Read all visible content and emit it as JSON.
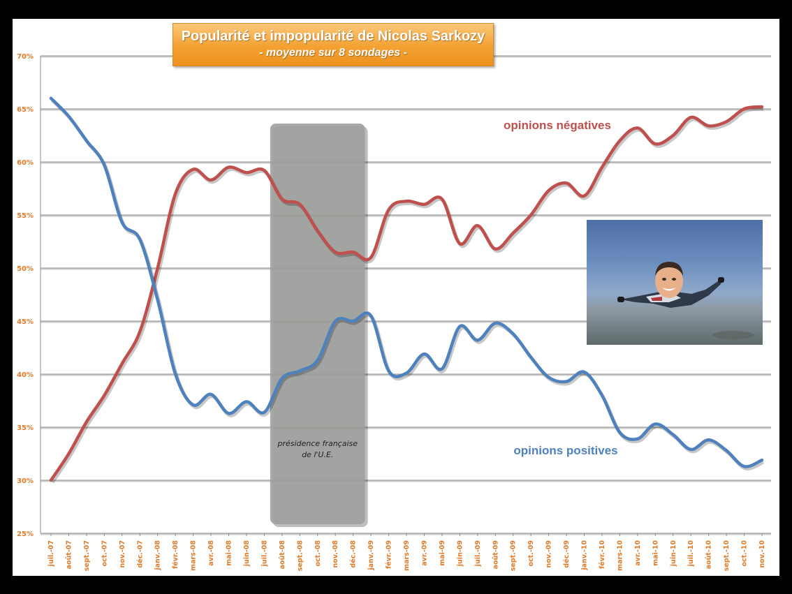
{
  "chart_data": {
    "type": "line",
    "title": "Popularité et impopularité de Nicolas Sarkozy",
    "subtitle": "- moyenne sur 8 sondages -",
    "categories": [
      "juil.-07",
      "août-07",
      "sept.-07",
      "oct.-07",
      "nov.-07",
      "déc.-07",
      "janv.-08",
      "févr.-08",
      "mars-08",
      "avr.-08",
      "mai-08",
      "juin-08",
      "juil.-08",
      "août-08",
      "sept.-08",
      "oct.-08",
      "nov.-08",
      "déc.-08",
      "janv.-09",
      "févr.-09",
      "mars-09",
      "avr.-09",
      "mai-09",
      "juin-09",
      "juil.-09",
      "août-09",
      "sept.-09",
      "oct.-09",
      "nov.-09",
      "déc.-09",
      "janv.-10",
      "févr.-10",
      "mars-10",
      "avr.-10",
      "mai-10",
      "juin-10",
      "juil.-10",
      "août-10",
      "sept.-10",
      "oct.-10",
      "nov.-10"
    ],
    "yticks": [
      "25%",
      "30%",
      "35%",
      "40%",
      "45%",
      "50%",
      "55%",
      "60%",
      "65%",
      "70%"
    ],
    "ylim": [
      25,
      70
    ],
    "grid": true,
    "series": [
      {
        "name": "opinions négatives",
        "color": "#c0504d",
        "values": [
          30,
          32.5,
          35.5,
          38,
          41,
          44,
          50,
          57,
          59.3,
          58.3,
          59.5,
          59,
          59.2,
          56.5,
          56,
          53.5,
          51.5,
          51.5,
          51,
          55.5,
          56.3,
          56,
          56.5,
          52.3,
          54,
          51.8,
          53.3,
          55,
          57.3,
          58,
          56.8,
          59.5,
          62,
          63.2,
          61.7,
          62.5,
          64.2,
          63.4,
          63.8,
          65,
          65.2
        ]
      },
      {
        "name": "opinions positives",
        "color": "#4f81bd",
        "values": [
          66,
          64.3,
          62,
          59.7,
          54.3,
          52.7,
          47,
          40,
          37.1,
          38.1,
          36.3,
          37.4,
          36.4,
          39.6,
          40.3,
          41.3,
          45,
          45,
          45.5,
          40.3,
          40.1,
          41.9,
          40.5,
          44.5,
          43.2,
          44.8,
          43.8,
          41.6,
          39.7,
          39.3,
          40.2,
          38,
          34.5,
          33.9,
          35.3,
          34.3,
          32.9,
          33.8,
          32.8,
          31.3,
          31.9
        ]
      }
    ],
    "annotation": {
      "lines": [
        "présidence française",
        "de l'U.E."
      ],
      "start": "août-08",
      "end": "déc.-08"
    }
  },
  "photo": {
    "description_icon": "skydiver-photo"
  }
}
